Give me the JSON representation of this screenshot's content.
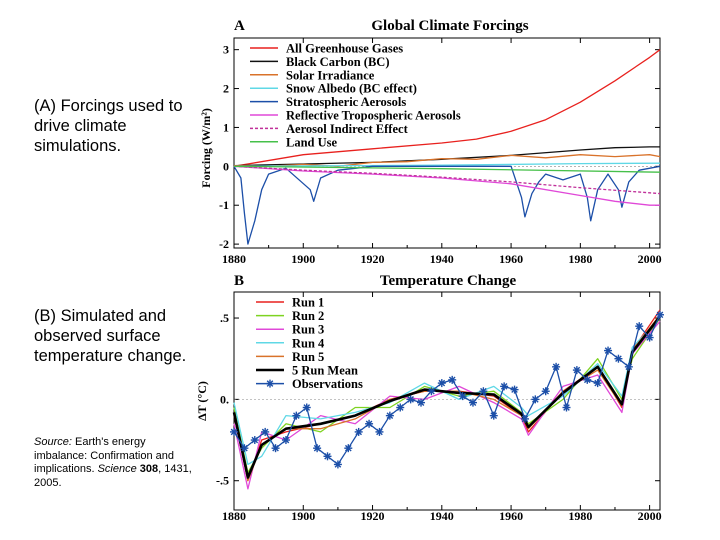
{
  "captions": {
    "a": "(A) Forcings used to drive climate simulations.",
    "b": "(B) Simulated and observed surface temperature change.",
    "source_label": "Source:",
    "source_text": "Earth's energy imbalance: Confirmation and implications.",
    "source_journal": "Science",
    "source_volume": "308",
    "source_pages": ", 1431, 2005."
  },
  "chart_data": [
    {
      "type": "line",
      "panel_letter": "A",
      "title": "Global Climate Forcings",
      "ylabel": "Forcing (W/m²)",
      "xlim": [
        1880,
        2003
      ],
      "ylim": [
        -2.1,
        3.3
      ],
      "xticks": [
        "1880",
        "1900",
        "1920",
        "1940",
        "1960",
        "1980",
        "2000"
      ],
      "yticks": [
        "3",
        "2",
        "1",
        "0",
        "-1",
        "-2"
      ],
      "series": [
        {
          "name": "All Greenhouse Gases",
          "color": "#e8211e",
          "x": [
            1880,
            1900,
            1920,
            1940,
            1950,
            1960,
            1970,
            1980,
            1990,
            2000,
            2003
          ],
          "y": [
            0,
            0.3,
            0.45,
            0.6,
            0.7,
            0.9,
            1.2,
            1.65,
            2.2,
            2.8,
            3.0
          ]
        },
        {
          "name": "Black Carbon (BC)",
          "color": "#111111",
          "x": [
            1880,
            1900,
            1920,
            1940,
            1960,
            1980,
            1990,
            2000,
            2003
          ],
          "y": [
            0.02,
            0.06,
            0.1,
            0.18,
            0.28,
            0.42,
            0.48,
            0.5,
            0.5
          ]
        },
        {
          "name": "Solar Irradiance",
          "color": "#d9722a",
          "x": [
            1880,
            1890,
            1900,
            1910,
            1920,
            1930,
            1940,
            1950,
            1960,
            1970,
            1980,
            1990,
            2000,
            2003
          ],
          "y": [
            0.02,
            0.0,
            0.05,
            0.0,
            0.1,
            0.12,
            0.2,
            0.18,
            0.28,
            0.22,
            0.3,
            0.25,
            0.3,
            0.25
          ]
        },
        {
          "name": "Snow Albedo (BC effect)",
          "color": "#5fd8e6",
          "x": [
            1880,
            1940,
            1980,
            2003
          ],
          "y": [
            0.0,
            0.03,
            0.07,
            0.08
          ]
        },
        {
          "name": "Stratospheric Aerosols",
          "color": "#1c4fa8",
          "x": [
            1880,
            1882,
            1883,
            1884,
            1886,
            1888,
            1890,
            1895,
            1902,
            1903,
            1905,
            1910,
            1915,
            1920,
            1940,
            1960,
            1963,
            1964,
            1966,
            1968,
            1970,
            1975,
            1980,
            1982,
            1983,
            1985,
            1988,
            1991,
            1992,
            1994,
            1997,
            2003
          ],
          "y": [
            0,
            -0.3,
            -1.2,
            -2.0,
            -1.4,
            -0.6,
            -0.2,
            -0.05,
            -0.6,
            -0.9,
            -0.3,
            -0.1,
            -0.05,
            0,
            0,
            0,
            -0.8,
            -1.3,
            -0.7,
            -0.4,
            -0.2,
            -0.35,
            -0.2,
            -0.8,
            -1.4,
            -0.6,
            -0.2,
            -0.6,
            -1.05,
            -0.4,
            -0.1,
            0
          ]
        },
        {
          "name": "Reflective Tropospheric Aerosols",
          "color": "#e048d8",
          "x": [
            1880,
            1900,
            1920,
            1940,
            1960,
            1980,
            1990,
            2000,
            2003
          ],
          "y": [
            0,
            -0.12,
            -0.2,
            -0.3,
            -0.45,
            -0.75,
            -0.9,
            -1.0,
            -1.0
          ]
        },
        {
          "name": "Aerosol Indirect Effect",
          "color": "#c0309a",
          "dashed": true,
          "x": [
            1880,
            1900,
            1920,
            1940,
            1960,
            1980,
            2000,
            2003
          ],
          "y": [
            0,
            -0.1,
            -0.18,
            -0.28,
            -0.4,
            -0.55,
            -0.68,
            -0.7
          ]
        },
        {
          "name": "Land Use",
          "color": "#46c04a",
          "x": [
            1880,
            1940,
            2003
          ],
          "y": [
            0,
            -0.06,
            -0.15
          ]
        }
      ]
    },
    {
      "type": "line",
      "panel_letter": "B",
      "title": "Temperature Change",
      "ylabel": "ΔT (°C)",
      "xlim": [
        1880,
        2003
      ],
      "ylim": [
        -0.68,
        0.66
      ],
      "xticks": [
        "1880",
        "1900",
        "1920",
        "1940",
        "1960",
        "1980",
        "2000"
      ],
      "yticks": [
        ".5",
        "0.",
        "-.5"
      ],
      "series": [
        {
          "name": "Run 1",
          "color": "#e8211e",
          "x": [
            1880,
            1884,
            1888,
            1895,
            1905,
            1915,
            1925,
            1935,
            1945,
            1955,
            1963,
            1965,
            1975,
            1985,
            1992,
            1995,
            2003
          ],
          "y": [
            -0.1,
            -0.5,
            -0.25,
            -0.2,
            -0.15,
            -0.1,
            0.0,
            0.05,
            0.05,
            0.02,
            -0.1,
            -0.2,
            0.05,
            0.2,
            -0.05,
            0.3,
            0.55
          ]
        },
        {
          "name": "Run 2",
          "color": "#7ed321",
          "x": [
            1880,
            1884,
            1888,
            1895,
            1905,
            1915,
            1925,
            1935,
            1945,
            1955,
            1963,
            1965,
            1975,
            1985,
            1992,
            1995,
            2003
          ],
          "y": [
            -0.05,
            -0.45,
            -0.3,
            -0.15,
            -0.2,
            -0.05,
            -0.05,
            0.08,
            0.02,
            0.05,
            -0.08,
            -0.15,
            0.0,
            0.25,
            0.0,
            0.25,
            0.5
          ]
        },
        {
          "name": "Run 3",
          "color": "#e048d8",
          "x": [
            1880,
            1884,
            1888,
            1895,
            1905,
            1915,
            1925,
            1935,
            1945,
            1955,
            1963,
            1965,
            1975,
            1985,
            1992,
            1995,
            2003
          ],
          "y": [
            -0.15,
            -0.55,
            -0.2,
            -0.25,
            -0.1,
            -0.15,
            0.02,
            0.0,
            0.08,
            -0.02,
            -0.12,
            -0.22,
            0.08,
            0.15,
            -0.08,
            0.28,
            0.48
          ]
        },
        {
          "name": "Run 4",
          "color": "#5fd8e6",
          "x": [
            1880,
            1884,
            1888,
            1895,
            1905,
            1915,
            1925,
            1935,
            1945,
            1955,
            1963,
            1965,
            1975,
            1985,
            1992,
            1995,
            2003
          ],
          "y": [
            -0.02,
            -0.4,
            -0.35,
            -0.1,
            -0.12,
            -0.08,
            -0.02,
            0.1,
            0.0,
            0.08,
            -0.05,
            -0.1,
            0.02,
            0.22,
            0.02,
            0.32,
            0.5
          ]
        },
        {
          "name": "Run 5",
          "color": "#d9722a",
          "x": [
            1880,
            1884,
            1888,
            1895,
            1905,
            1915,
            1925,
            1935,
            1945,
            1955,
            1963,
            1965,
            1975,
            1985,
            1992,
            1995,
            2003
          ],
          "y": [
            -0.08,
            -0.5,
            -0.28,
            -0.18,
            -0.18,
            -0.12,
            0.0,
            0.05,
            0.05,
            0.0,
            -0.1,
            -0.18,
            0.05,
            0.18,
            -0.04,
            0.3,
            0.52
          ]
        },
        {
          "name": "5 Run Mean",
          "color": "#000000",
          "bold": true,
          "x": [
            1880,
            1884,
            1888,
            1895,
            1905,
            1915,
            1925,
            1935,
            1945,
            1955,
            1963,
            1965,
            1975,
            1985,
            1992,
            1995,
            2003
          ],
          "y": [
            -0.08,
            -0.48,
            -0.28,
            -0.18,
            -0.15,
            -0.1,
            -0.01,
            0.06,
            0.04,
            0.03,
            -0.09,
            -0.17,
            0.04,
            0.2,
            -0.03,
            0.29,
            0.51
          ]
        },
        {
          "name": "Observations",
          "color": "#1c4fa8",
          "markers": true,
          "x": [
            1880,
            1883,
            1886,
            1889,
            1892,
            1895,
            1898,
            1901,
            1904,
            1907,
            1910,
            1913,
            1916,
            1919,
            1922,
            1925,
            1928,
            1931,
            1934,
            1937,
            1940,
            1943,
            1946,
            1949,
            1952,
            1955,
            1958,
            1961,
            1964,
            1967,
            1970,
            1973,
            1976,
            1979,
            1982,
            1985,
            1988,
            1991,
            1994,
            1997,
            2000,
            2003
          ],
          "y": [
            -0.2,
            -0.3,
            -0.25,
            -0.2,
            -0.3,
            -0.25,
            -0.1,
            -0.05,
            -0.3,
            -0.35,
            -0.4,
            -0.3,
            -0.2,
            -0.15,
            -0.2,
            -0.1,
            -0.05,
            0.0,
            -0.02,
            0.05,
            0.1,
            0.12,
            0.02,
            -0.02,
            0.05,
            -0.1,
            0.08,
            0.06,
            -0.12,
            0.0,
            0.05,
            0.2,
            -0.05,
            0.18,
            0.12,
            0.1,
            0.3,
            0.25,
            0.2,
            0.45,
            0.38,
            0.52
          ]
        }
      ]
    }
  ]
}
